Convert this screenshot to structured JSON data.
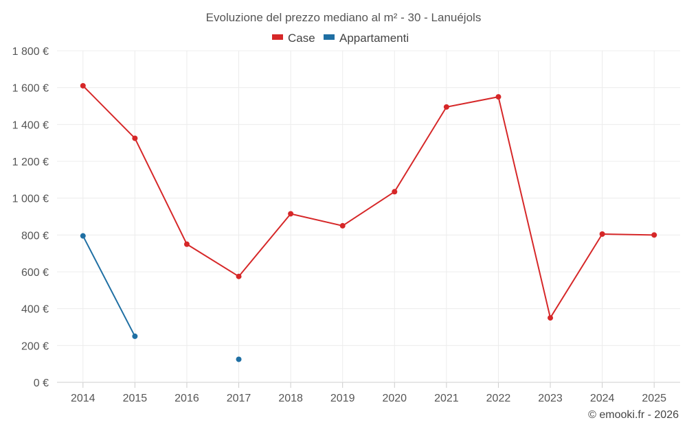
{
  "chart_data": {
    "type": "line",
    "title": "Evoluzione del prezzo mediano al m² - 30 - Lanuéjols",
    "categories": [
      "2014",
      "2015",
      "2016",
      "2017",
      "2018",
      "2019",
      "2020",
      "2021",
      "2022",
      "2023",
      "2024",
      "2025"
    ],
    "ylim": [
      0,
      1800
    ],
    "yticks": [
      0,
      200,
      400,
      600,
      800,
      1000,
      1200,
      1400,
      1600,
      1800
    ],
    "ytick_labels": [
      "0 €",
      "200 €",
      "400 €",
      "600 €",
      "800 €",
      "1 000 €",
      "1 200 €",
      "1 400 €",
      "1 600 €",
      "1 800 €"
    ],
    "grid": true,
    "legend_position": "top-center",
    "series": [
      {
        "name": "Case",
        "color": "#d62728",
        "values": [
          1610,
          1325,
          750,
          575,
          915,
          850,
          1035,
          1495,
          1550,
          350,
          805,
          800
        ]
      },
      {
        "name": "Appartamenti",
        "color": "#1f6fa3",
        "values": [
          795,
          250,
          null,
          125,
          null,
          null,
          null,
          null,
          null,
          null,
          null,
          null
        ]
      }
    ]
  },
  "credit": "© emooki.fr - 2026"
}
